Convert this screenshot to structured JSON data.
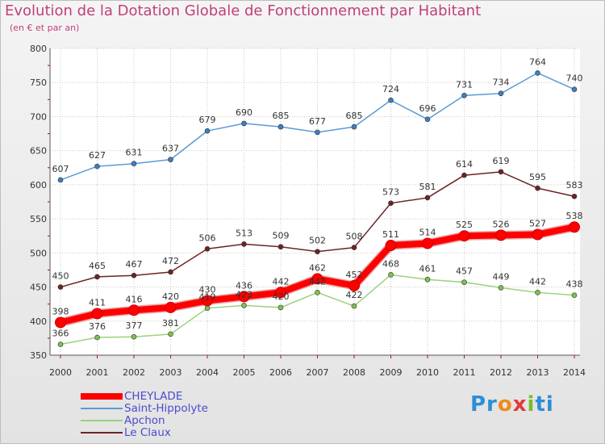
{
  "title": "Evolution de la Dotation Globale de Fonctionnement par Habitant",
  "subtitle": "(en € et par an)",
  "logo": {
    "text": "Proxiti",
    "parts": [
      "Pr",
      "o",
      "x",
      "i",
      "ti"
    ]
  },
  "chart_data": {
    "type": "line",
    "title": "Evolution de la Dotation Globale de Fonctionnement par Habitant",
    "ylabel": "(en € et par an)",
    "xlabel": "",
    "x": [
      "2000",
      "2001",
      "2002",
      "2003",
      "2004",
      "2005",
      "2006",
      "2007",
      "2008",
      "2009",
      "2010",
      "2011",
      "2012",
      "2013",
      "2014"
    ],
    "ylim": [
      350,
      800
    ],
    "yticks": [
      350,
      400,
      450,
      500,
      550,
      600,
      650,
      700,
      750,
      800
    ],
    "grid": true,
    "legend_position": "bottom-left",
    "series": [
      {
        "name": "Saint-Hippolyte",
        "color": "#5b9bd5",
        "marker": "#3f7fc0",
        "values": [
          607,
          627,
          631,
          637,
          679,
          690,
          685,
          677,
          685,
          724,
          696,
          731,
          734,
          764,
          740
        ]
      },
      {
        "name": "Le Claux",
        "color": "#6d2323",
        "marker": "#6d2323",
        "values": [
          450,
          465,
          467,
          472,
          506,
          513,
          509,
          502,
          508,
          573,
          581,
          614,
          619,
          595,
          583
        ]
      },
      {
        "name": "Apchon",
        "color": "#9ad27a",
        "marker": "#7cc34d",
        "values": [
          366,
          376,
          377,
          381,
          419,
          423,
          420,
          442,
          422,
          468,
          461,
          457,
          449,
          442,
          438
        ]
      },
      {
        "name": "CHEYLADE",
        "color": "#ff0000",
        "marker": "#ff0000",
        "values": [
          398,
          411,
          416,
          420,
          430,
          436,
          442,
          462,
          452,
          511,
          514,
          525,
          526,
          527,
          538
        ]
      }
    ],
    "legend": [
      "CHEYLADE",
      "Saint-Hippolyte",
      "Apchon",
      "Le Claux"
    ]
  }
}
